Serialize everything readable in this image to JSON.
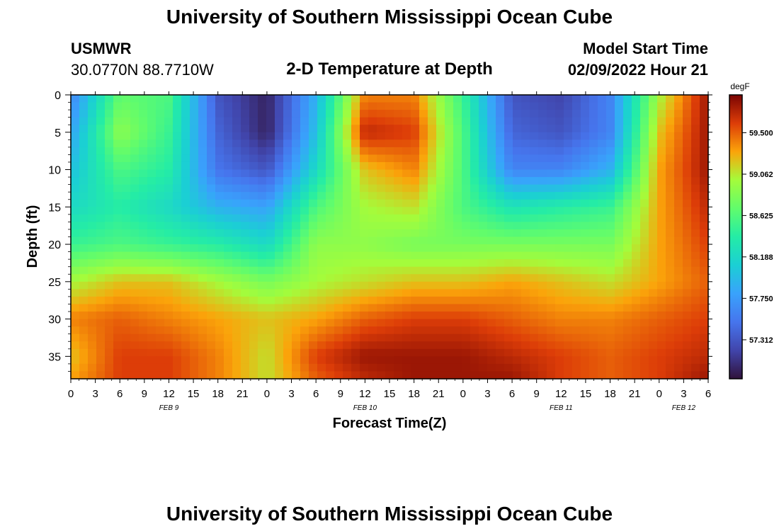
{
  "page": {
    "title": "University of Southern Mississippi Ocean Cube",
    "footer_title": "University of Southern Mississippi Ocean Cube",
    "station_id": "USMWR",
    "station_coords": "30.0770N  88.7710W",
    "model_start_label": "Model Start Time",
    "model_start_value": "02/09/2022 Hour 21"
  },
  "chart_data": {
    "type": "heatmap",
    "title": "2-D Temperature at Depth",
    "xlabel": "Forecast Time(Z)",
    "ylabel": "Depth (ft)",
    "x_tick_labels": [
      "0",
      "3",
      "6",
      "9",
      "12",
      "15",
      "18",
      "21",
      "0",
      "3",
      "6",
      "9",
      "12",
      "15",
      "18",
      "21",
      "0",
      "3",
      "6",
      "9",
      "12",
      "15",
      "18",
      "21",
      "0",
      "3",
      "6"
    ],
    "date_labels": [
      "FEB 9",
      "FEB 10",
      "FEB 11",
      "FEB 12"
    ],
    "y_tick_labels": [
      "0",
      "5",
      "10",
      "15",
      "20",
      "25",
      "30",
      "35"
    ],
    "ylim": [
      38,
      0
    ],
    "colorbar": {
      "unit": "degF",
      "tick_labels": [
        "59.500",
        "59.062",
        "58.625",
        "58.188",
        "57.750",
        "57.312"
      ],
      "range": [
        56.9,
        59.9
      ]
    },
    "x_hours_since_start": [
      0,
      6,
      12,
      18,
      24,
      30,
      36,
      42,
      48,
      54,
      60,
      66,
      72,
      78
    ],
    "depth_ft": [
      0,
      5,
      10,
      15,
      20,
      25,
      30,
      35,
      38
    ],
    "values": [
      [
        57.6,
        58.7,
        58.6,
        57.3,
        57.0,
        57.9,
        59.4,
        59.4,
        58.5,
        57.3,
        57.2,
        57.6,
        59.0,
        59.8
      ],
      [
        57.8,
        58.9,
        58.5,
        57.4,
        57.0,
        58.0,
        59.7,
        59.6,
        58.6,
        57.4,
        57.3,
        57.6,
        59.2,
        59.8
      ],
      [
        58.0,
        58.6,
        58.4,
        57.5,
        57.3,
        58.2,
        59.2,
        59.4,
        58.6,
        57.6,
        57.6,
        57.9,
        59.3,
        59.8
      ],
      [
        58.2,
        58.4,
        58.2,
        57.9,
        57.8,
        58.6,
        59.0,
        59.1,
        58.6,
        58.3,
        58.4,
        58.5,
        59.3,
        59.7
      ],
      [
        58.5,
        58.6,
        58.5,
        58.4,
        58.2,
        58.9,
        58.9,
        58.8,
        58.8,
        58.8,
        58.8,
        58.8,
        59.3,
        59.6
      ],
      [
        59.0,
        59.2,
        59.2,
        59.0,
        58.8,
        59.0,
        59.1,
        59.2,
        59.2,
        59.3,
        59.2,
        59.1,
        59.3,
        59.5
      ],
      [
        59.4,
        59.5,
        59.4,
        59.3,
        59.2,
        59.3,
        59.5,
        59.6,
        59.6,
        59.5,
        59.4,
        59.4,
        59.5,
        59.6
      ],
      [
        59.2,
        59.6,
        59.6,
        59.4,
        59.1,
        59.6,
        59.8,
        59.8,
        59.8,
        59.7,
        59.6,
        59.5,
        59.6,
        59.7
      ],
      [
        59.3,
        59.6,
        59.6,
        59.4,
        59.1,
        59.5,
        59.7,
        59.8,
        59.8,
        59.8,
        59.6,
        59.5,
        59.6,
        59.8
      ]
    ],
    "colors": {
      "axis": "#000000",
      "background": "#ffffff"
    }
  }
}
